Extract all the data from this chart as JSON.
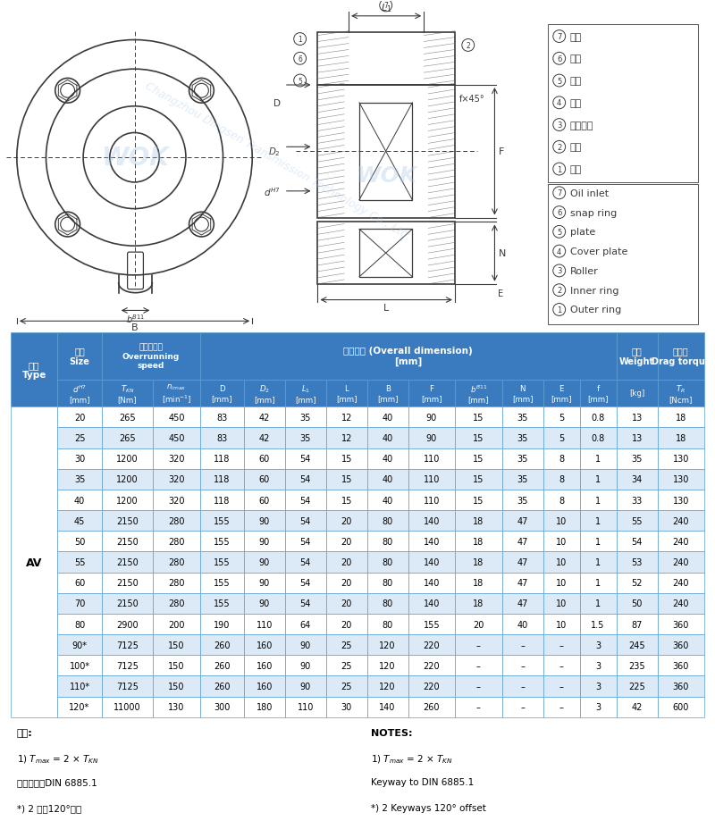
{
  "header_bg": "#3a7bbf",
  "header_text_color": "#ffffff",
  "row_bg_even": "#dce9f7",
  "row_bg_odd": "#ffffff",
  "border_color": "#5a9fd4",
  "data": [
    [
      "20",
      "265",
      "450",
      "83",
      "42",
      "35",
      "12",
      "40",
      "90",
      "15",
      "35",
      "5",
      "0.8",
      "13",
      "18"
    ],
    [
      "25",
      "265",
      "450",
      "83",
      "42",
      "35",
      "12",
      "40",
      "90",
      "15",
      "35",
      "5",
      "0.8",
      "13",
      "18"
    ],
    [
      "30",
      "1200",
      "320",
      "118",
      "60",
      "54",
      "15",
      "40",
      "110",
      "15",
      "35",
      "8",
      "1",
      "35",
      "130"
    ],
    [
      "35",
      "1200",
      "320",
      "118",
      "60",
      "54",
      "15",
      "40",
      "110",
      "15",
      "35",
      "8",
      "1",
      "34",
      "130"
    ],
    [
      "40",
      "1200",
      "320",
      "118",
      "60",
      "54",
      "15",
      "40",
      "110",
      "15",
      "35",
      "8",
      "1",
      "33",
      "130"
    ],
    [
      "45",
      "2150",
      "280",
      "155",
      "90",
      "54",
      "20",
      "80",
      "140",
      "18",
      "47",
      "10",
      "1",
      "55",
      "240"
    ],
    [
      "50",
      "2150",
      "280",
      "155",
      "90",
      "54",
      "20",
      "80",
      "140",
      "18",
      "47",
      "10",
      "1",
      "54",
      "240"
    ],
    [
      "55",
      "2150",
      "280",
      "155",
      "90",
      "54",
      "20",
      "80",
      "140",
      "18",
      "47",
      "10",
      "1",
      "53",
      "240"
    ],
    [
      "60",
      "2150",
      "280",
      "155",
      "90",
      "54",
      "20",
      "80",
      "140",
      "18",
      "47",
      "10",
      "1",
      "52",
      "240"
    ],
    [
      "70",
      "2150",
      "280",
      "155",
      "90",
      "54",
      "20",
      "80",
      "140",
      "18",
      "47",
      "10",
      "1",
      "50",
      "240"
    ],
    [
      "80",
      "2900",
      "200",
      "190",
      "110",
      "64",
      "20",
      "80",
      "155",
      "20",
      "40",
      "10",
      "1.5",
      "87",
      "360"
    ],
    [
      "90*",
      "7125",
      "150",
      "260",
      "160",
      "90",
      "25",
      "120",
      "220",
      "–",
      "–",
      "–",
      "3",
      "245",
      "360"
    ],
    [
      "100*",
      "7125",
      "150",
      "260",
      "160",
      "90",
      "25",
      "120",
      "220",
      "–",
      "–",
      "–",
      "3",
      "235",
      "360"
    ],
    [
      "110*",
      "7125",
      "150",
      "260",
      "160",
      "90",
      "25",
      "120",
      "220",
      "–",
      "–",
      "–",
      "3",
      "225",
      "360"
    ],
    [
      "120*",
      "11000",
      "130",
      "300",
      "180",
      "110",
      "30",
      "140",
      "260",
      "–",
      "–",
      "–",
      "3",
      "42",
      "600"
    ]
  ],
  "parts_cn": [
    [
      "7",
      "油嘴"
    ],
    [
      "6",
      "卡簧"
    ],
    [
      "5",
      "盖片"
    ],
    [
      "4",
      "盖板"
    ],
    [
      "3",
      "滚珠组件"
    ],
    [
      "2",
      "内圈"
    ],
    [
      "1",
      "外圈"
    ]
  ],
  "parts_en": [
    [
      "7",
      "Oil inlet"
    ],
    [
      "6",
      "snap ring"
    ],
    [
      "5",
      "plate"
    ],
    [
      "4",
      "Cover plate"
    ],
    [
      "3",
      "Roller"
    ],
    [
      "2",
      "Inner ring"
    ],
    [
      "1",
      "Outer ring"
    ]
  ]
}
